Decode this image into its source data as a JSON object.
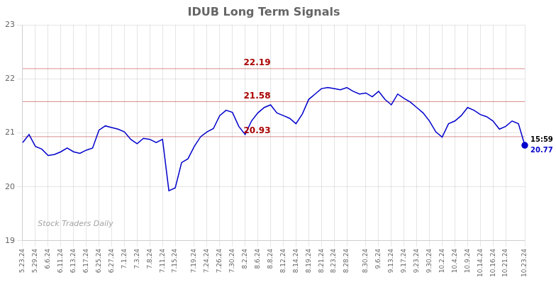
{
  "chart_data": {
    "type": "line",
    "title": "IDUB Long Term Signals",
    "categories": [
      "5.23.24",
      null,
      "5.29.24",
      null,
      "6.6.24",
      null,
      "6.11.24",
      null,
      "6.13.24",
      null,
      "6.17.24",
      null,
      "6.25.24",
      null,
      "6.27.24",
      null,
      "7.1.24",
      null,
      "7.3.24",
      null,
      "7.8.24",
      null,
      "7.11.24",
      null,
      "7.15.24",
      null,
      null,
      "7.19.24",
      null,
      "7.24.24",
      null,
      "7.26.24",
      null,
      "7.30.24",
      null,
      "8.2.24",
      null,
      "8.6.24",
      null,
      "8.8.24",
      null,
      "8.12.24",
      null,
      "8.14.24",
      null,
      "8.19.24",
      null,
      "8.21.24",
      null,
      "8.23.24",
      null,
      "8.28.24",
      null,
      null,
      "8.30.24",
      null,
      "9.6.24",
      null,
      "9.13.24",
      null,
      "9.17.24",
      null,
      "9.23.24",
      null,
      "9.30.24",
      null,
      "10.2.24",
      null,
      "10.4.24",
      null,
      "10.9.24",
      null,
      "10.14.24",
      null,
      "10.16.24",
      null,
      "10.21.24",
      null,
      null,
      "10.23.24"
    ],
    "values": [
      20.82,
      20.97,
      20.75,
      20.7,
      20.58,
      20.6,
      20.65,
      20.72,
      20.65,
      20.62,
      20.68,
      20.72,
      21.05,
      21.13,
      21.1,
      21.07,
      21.02,
      20.88,
      20.8,
      20.9,
      20.88,
      20.82,
      20.88,
      19.93,
      19.98,
      20.45,
      20.52,
      20.75,
      20.93,
      21.02,
      21.08,
      21.32,
      21.42,
      21.38,
      21.12,
      20.97,
      21.22,
      21.37,
      21.47,
      21.52,
      21.37,
      21.32,
      21.27,
      21.17,
      21.35,
      21.62,
      21.72,
      21.82,
      21.84,
      21.82,
      21.8,
      21.84,
      21.77,
      21.72,
      21.74,
      21.67,
      21.77,
      21.62,
      21.52,
      21.72,
      21.64,
      21.57,
      21.47,
      21.37,
      21.22,
      21.02,
      20.92,
      21.17,
      21.22,
      21.32,
      21.47,
      21.42,
      21.34,
      21.3,
      21.22,
      21.07,
      21.12,
      21.22,
      21.17,
      20.77
    ],
    "color": "#0000cc",
    "ylim": [
      19,
      23
    ],
    "yticks": [
      19,
      20,
      21,
      22,
      23
    ],
    "grid": true,
    "reference_lines": [
      {
        "value": 22.19,
        "label": "22.19",
        "color": "#aa0000"
      },
      {
        "value": 21.58,
        "label": "21.58",
        "color": "#aa0000"
      },
      {
        "value": 20.93,
        "label": "20.93",
        "color": "#aa0000"
      }
    ],
    "last_point": {
      "marker": "circle",
      "color": "#0000cc",
      "labels": [
        "15:59",
        "20.77"
      ]
    },
    "watermark": "Stock Traders Daily"
  }
}
